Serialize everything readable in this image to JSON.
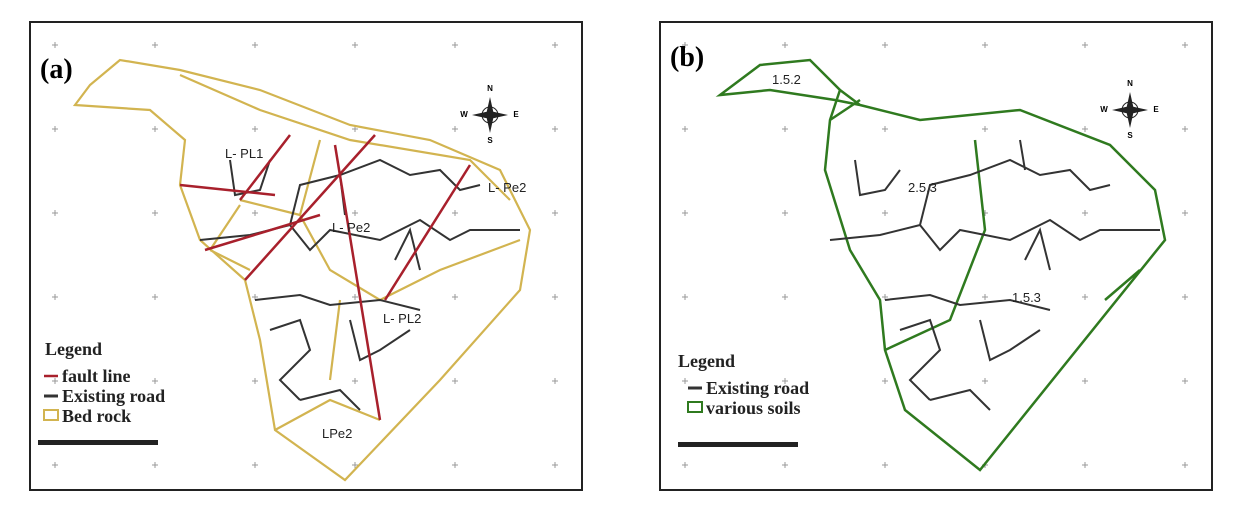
{
  "panels": [
    {
      "label": "(a)",
      "compass": {
        "n": "N",
        "e": "E",
        "s": "S",
        "w": "W"
      },
      "map_labels": [
        "L- PL1",
        "L- Pe2",
        "L- Pe2",
        "L- PL2",
        "LPe2"
      ],
      "legend": {
        "title": "Legend",
        "items": [
          "fault line",
          "Existing road",
          "Bed rock"
        ]
      }
    },
    {
      "label": "(b)",
      "compass": {
        "n": "N",
        "e": "E",
        "s": "S",
        "w": "W"
      },
      "map_labels": [
        "1.5.2",
        "2.5.3",
        "1.5.3"
      ],
      "legend": {
        "title": "Legend",
        "items": [
          "Existing road",
          "various soils"
        ]
      }
    }
  ]
}
